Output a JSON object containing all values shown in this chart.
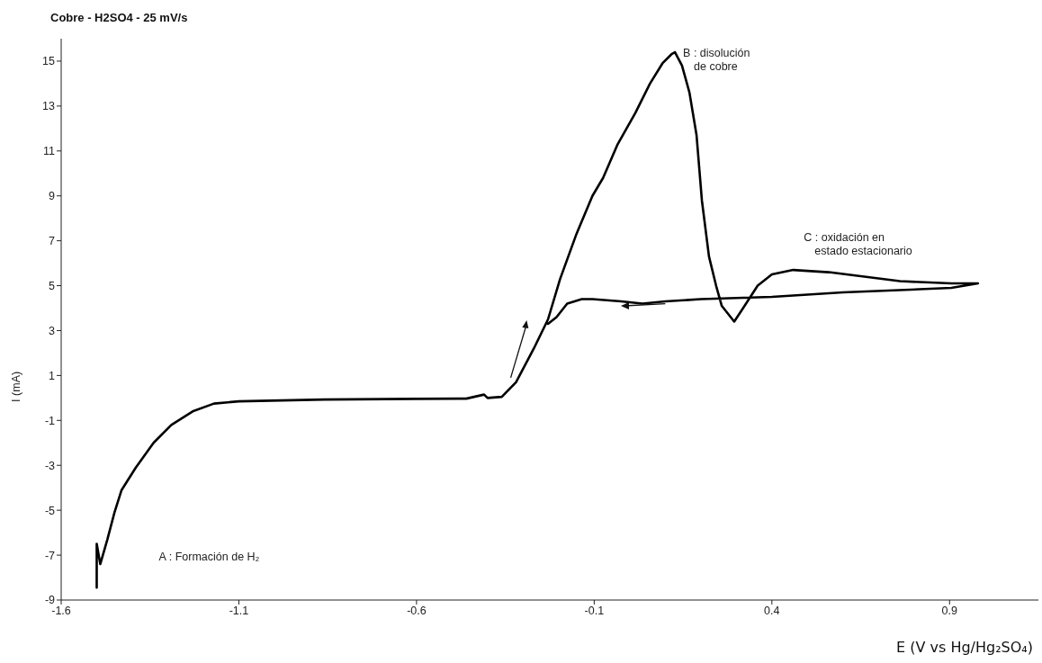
{
  "chart_data": {
    "type": "line",
    "title": "Cobre - H2SO4 - 25 mV/s",
    "xlabel": "E (V vs Hg/Hg₂SO₄)",
    "ylabel": "I (mA)",
    "x": [
      -1.5,
      -1.5,
      -1.49,
      -1.47,
      -1.45,
      -1.43,
      -1.39,
      -1.34,
      -1.29,
      -1.23,
      -1.17,
      -1.1,
      -0.86,
      -0.6,
      -0.46,
      -0.41,
      -0.4,
      -0.36,
      -0.32,
      -0.27,
      -0.23,
      -0.196,
      -0.15,
      -0.105,
      -0.075,
      -0.034,
      0.016,
      0.057,
      0.092,
      0.117,
      0.127,
      0.147,
      0.168,
      0.188,
      0.203,
      0.223,
      0.243,
      0.259,
      0.294,
      0.319,
      0.36,
      0.4,
      0.46,
      0.56,
      0.66,
      0.76,
      0.905,
      0.98,
      0.905,
      0.6,
      0.4,
      0.3,
      0.2,
      0.1,
      0.036,
      -0.024,
      -0.105,
      -0.135,
      -0.176,
      -0.206,
      -0.23
    ],
    "series": [
      {
        "color": "#000000",
        "values": [
          -8.45,
          -6.5,
          -7.4,
          -6.3,
          -5.1,
          -4.1,
          -3.1,
          -2.0,
          -1.2,
          -0.6,
          -0.25,
          -0.15,
          -0.07,
          -0.04,
          -0.03,
          0.15,
          0,
          0.05,
          0.7,
          2.2,
          3.5,
          5.3,
          7.3,
          9.0,
          9.8,
          11.3,
          12.7,
          14.0,
          14.9,
          15.3,
          15.4,
          14.8,
          13.6,
          11.7,
          8.8,
          6.3,
          5.0,
          4.1,
          3.4,
          4.0,
          5.0,
          5.5,
          5.7,
          5.6,
          5.4,
          5.2,
          5.1,
          5.1,
          4.9,
          4.7,
          4.5,
          4.45,
          4.4,
          4.3,
          4.2,
          4.3,
          4.4,
          4.4,
          4.2,
          3.6,
          3.3
        ]
      }
    ],
    "xlim": [
      -1.6,
      1.15
    ],
    "xticks": [
      -1.6,
      -1.1,
      -0.6,
      -0.1,
      0.4,
      0.9
    ],
    "ylim": [
      -9,
      16
    ],
    "yticks": [
      -9,
      -7,
      -5,
      -3,
      -1,
      1,
      3,
      5,
      7,
      9,
      11,
      13,
      15
    ],
    "grid": false,
    "legend": false,
    "marker": "none",
    "line_style": "solid",
    "annotations": [
      "A : Formación de H₂",
      {
        "text": "B : disolución\nde cobre",
        "x": 0.15,
        "y": 15.2
      },
      "C : oxidación en\nestado estacionario"
    ]
  }
}
